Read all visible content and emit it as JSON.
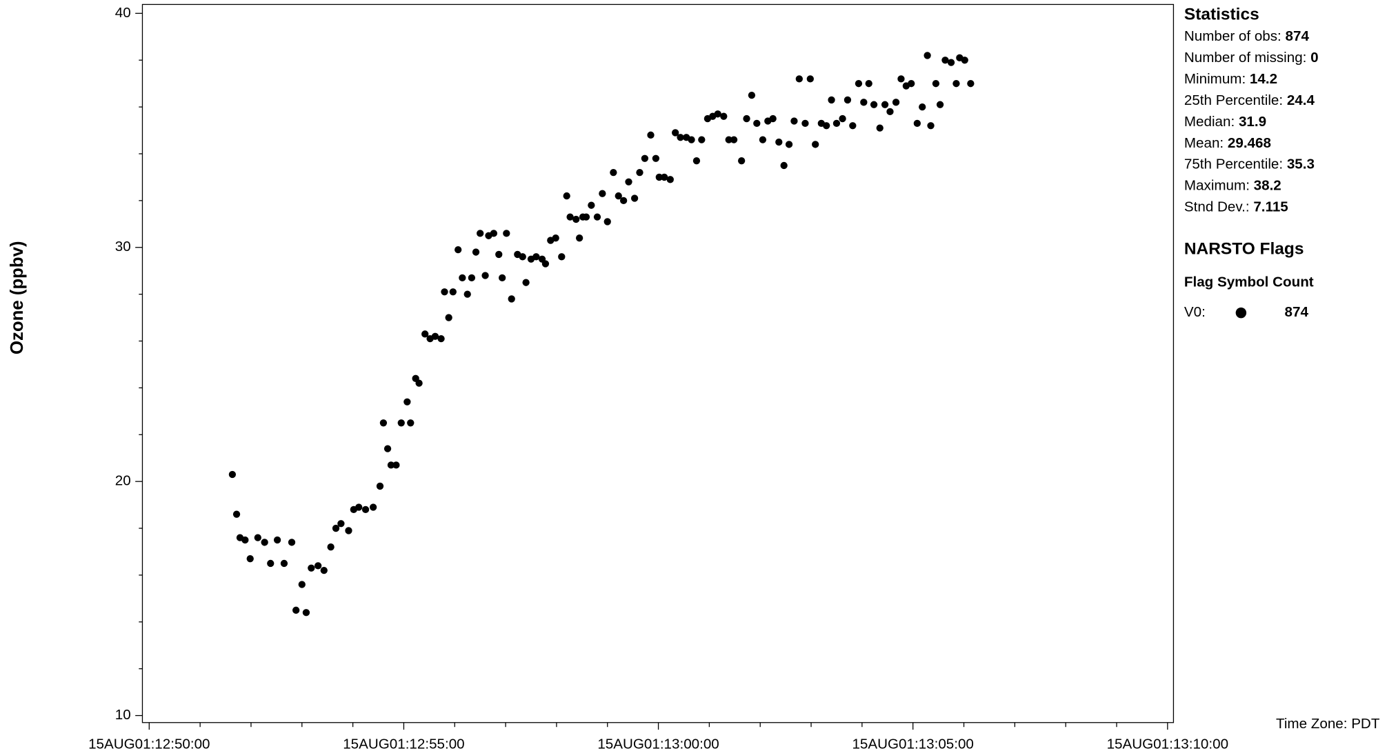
{
  "chart_data": {
    "type": "scatter",
    "y_label": "Ozone (ppbv)",
    "time_zone": "Time Zone: PDT",
    "color": "#000000",
    "xlim": [
      "15AUG01:12:49:52",
      "15AUG01:13:10:07"
    ],
    "xticks": [
      "15AUG01:12:50:00",
      "15AUG01:12:55:00",
      "15AUG01:13:00:00",
      "15AUG01:13:05:00",
      "15AUG01:13:10:00"
    ],
    "ylim": [
      9.7,
      40.38
    ],
    "yticks": [
      10,
      20,
      30,
      40
    ],
    "x": [
      "15AUG01:12:51:38",
      "15AUG01:12:51:43",
      "15AUG01:12:51:47",
      "15AUG01:12:51:53",
      "15AUG01:12:51:59",
      "15AUG01:12:52:08",
      "15AUG01:12:52:16",
      "15AUG01:12:52:23",
      "15AUG01:12:52:31",
      "15AUG01:12:52:39",
      "15AUG01:12:52:48",
      "15AUG01:12:52:53",
      "15AUG01:12:53:00",
      "15AUG01:12:53:05",
      "15AUG01:12:53:11",
      "15AUG01:12:53:19",
      "15AUG01:12:53:26",
      "15AUG01:12:53:34",
      "15AUG01:12:53:40",
      "15AUG01:12:53:46",
      "15AUG01:12:53:55",
      "15AUG01:12:54:01",
      "15AUG01:12:54:07",
      "15AUG01:12:54:15",
      "15AUG01:12:54:24",
      "15AUG01:12:54:32",
      "15AUG01:12:54:36",
      "15AUG01:12:54:41",
      "15AUG01:12:54:45",
      "15AUG01:12:54:51",
      "15AUG01:12:54:57",
      "15AUG01:12:55:04",
      "15AUG01:12:55:08",
      "15AUG01:12:55:14",
      "15AUG01:12:55:18",
      "15AUG01:12:55:25",
      "15AUG01:12:55:31",
      "15AUG01:12:55:37",
      "15AUG01:12:55:44",
      "15AUG01:12:55:48",
      "15AUG01:12:55:53",
      "15AUG01:12:55:58",
      "15AUG01:12:56:04",
      "15AUG01:12:56:09",
      "15AUG01:12:56:15",
      "15AUG01:12:56:20",
      "15AUG01:12:56:25",
      "15AUG01:12:56:30",
      "15AUG01:12:56:36",
      "15AUG01:12:56:40",
      "15AUG01:12:56:46",
      "15AUG01:12:56:52",
      "15AUG01:12:56:56",
      "15AUG01:12:57:01",
      "15AUG01:12:57:07",
      "15AUG01:12:57:14",
      "15AUG01:12:57:20",
      "15AUG01:12:57:24",
      "15AUG01:12:57:30",
      "15AUG01:12:57:36",
      "15AUG01:12:57:43",
      "15AUG01:12:57:47",
      "15AUG01:12:57:53",
      "15AUG01:12:57:59",
      "15AUG01:12:58:06",
      "15AUG01:12:58:12",
      "15AUG01:12:58:16",
      "15AUG01:12:58:23",
      "15AUG01:12:58:27",
      "15AUG01:12:58:31",
      "15AUG01:12:58:35",
      "15AUG01:12:58:41",
      "15AUG01:12:58:48",
      "15AUG01:12:58:54",
      "15AUG01:12:59:00",
      "15AUG01:12:59:07",
      "15AUG01:12:59:13",
      "15AUG01:12:59:19",
      "15AUG01:12:59:25",
      "15AUG01:12:59:32",
      "15AUG01:12:59:38",
      "15AUG01:12:59:44",
      "15AUG01:12:59:51",
      "15AUG01:12:59:57",
      "15AUG01:13:00:01",
      "15AUG01:13:00:07",
      "15AUG01:13:00:14",
      "15AUG01:13:00:20",
      "15AUG01:13:00:26",
      "15AUG01:13:00:33",
      "15AUG01:13:00:39",
      "15AUG01:13:00:45",
      "15AUG01:13:00:51",
      "15AUG01:13:00:58",
      "15AUG01:13:01:04",
      "15AUG01:13:01:10",
      "15AUG01:13:01:17",
      "15AUG01:13:01:23",
      "15AUG01:13:01:29",
      "15AUG01:13:01:38",
      "15AUG01:13:01:44",
      "15AUG01:13:01:50",
      "15AUG01:13:01:56",
      "15AUG01:13:02:03",
      "15AUG01:13:02:09",
      "15AUG01:13:02:15",
      "15AUG01:13:02:22",
      "15AUG01:13:02:28",
      "15AUG01:13:02:34",
      "15AUG01:13:02:40",
      "15AUG01:13:02:46",
      "15AUG01:13:02:53",
      "15AUG01:13:02:59",
      "15AUG01:13:03:05",
      "15AUG01:13:03:12",
      "15AUG01:13:03:18",
      "15AUG01:13:03:24",
      "15AUG01:13:03:30",
      "15AUG01:13:03:37",
      "15AUG01:13:03:43",
      "15AUG01:13:03:49",
      "15AUG01:13:03:56",
      "15AUG01:13:04:02",
      "15AUG01:13:04:08",
      "15AUG01:13:04:14",
      "15AUG01:13:04:21",
      "15AUG01:13:04:27",
      "15AUG01:13:04:33",
      "15AUG01:13:04:40",
      "15AUG01:13:04:46",
      "15AUG01:13:04:52",
      "15AUG01:13:04:58",
      "15AUG01:13:05:05",
      "15AUG01:13:05:11",
      "15AUG01:13:05:17",
      "15AUG01:13:05:21",
      "15AUG01:13:05:27",
      "15AUG01:13:05:32",
      "15AUG01:13:05:38",
      "15AUG01:13:05:45",
      "15AUG01:13:05:51",
      "15AUG01:13:05:55",
      "15AUG01:13:06:01",
      "15AUG01:13:06:08"
    ],
    "values": [
      20.3,
      18.6,
      17.6,
      17.5,
      16.7,
      17.6,
      17.4,
      16.5,
      17.5,
      16.5,
      17.4,
      14.5,
      15.6,
      14.4,
      16.3,
      16.4,
      16.2,
      17.2,
      18.0,
      18.2,
      17.9,
      18.8,
      18.9,
      18.8,
      18.9,
      19.8,
      22.5,
      21.4,
      20.7,
      20.7,
      22.5,
      23.4,
      22.5,
      24.4,
      24.2,
      26.3,
      26.1,
      26.2,
      26.1,
      28.1,
      27.0,
      28.1,
      29.9,
      28.7,
      28.0,
      28.7,
      29.8,
      30.6,
      28.8,
      30.5,
      30.6,
      29.7,
      28.7,
      30.6,
      27.8,
      29.7,
      29.6,
      28.5,
      29.5,
      29.6,
      29.5,
      29.3,
      30.3,
      30.4,
      29.6,
      32.2,
      31.3,
      31.2,
      30.4,
      31.3,
      31.3,
      31.8,
      31.3,
      32.3,
      31.1,
      33.2,
      32.2,
      32.0,
      32.8,
      32.1,
      33.2,
      33.8,
      34.8,
      33.8,
      33.0,
      33.0,
      32.9,
      34.9,
      34.7,
      34.7,
      34.6,
      33.7,
      34.6,
      35.5,
      35.6,
      35.7,
      35.6,
      34.6,
      34.6,
      33.7,
      35.5,
      36.5,
      35.3,
      34.6,
      35.4,
      35.5,
      34.5,
      33.5,
      34.4,
      35.4,
      37.2,
      35.3,
      37.2,
      34.4,
      35.3,
      35.2,
      36.3,
      35.3,
      35.5,
      36.3,
      35.2,
      37.0,
      36.2,
      37.0,
      36.1,
      35.1,
      36.1,
      35.8,
      36.2,
      37.2,
      36.9,
      37.0,
      35.3,
      36.0,
      38.2,
      35.2,
      37.0,
      36.1,
      38.0,
      37.9,
      37.0,
      38.1,
      38.0,
      37.0
    ],
    "statistics": {
      "title": "Statistics",
      "rows": [
        {
          "label": "Number of obs:",
          "value": 874
        },
        {
          "label": "Number of missing:",
          "value": 0
        },
        {
          "label": "Minimum:",
          "value": 14.2
        },
        {
          "label": "25th Percentile:",
          "value": 24.4
        },
        {
          "label": "Median:",
          "value": 31.9
        },
        {
          "label": "Mean:",
          "value": 29.468
        },
        {
          "label": "75th Percentile:",
          "value": 35.3
        },
        {
          "label": "Maximum:",
          "value": 38.2
        },
        {
          "label": "Stnd Dev.:",
          "value": 7.115
        }
      ]
    },
    "flags": {
      "title": "NARSTO Flags",
      "header": "Flag Symbol Count",
      "rows": [
        {
          "flag": "V0:",
          "count": 874
        }
      ]
    }
  }
}
